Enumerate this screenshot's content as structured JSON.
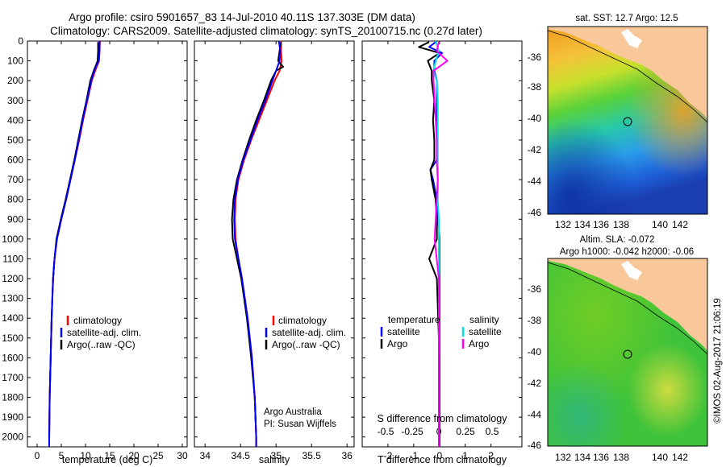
{
  "header": {
    "line1": "Argo profile: csiro 5901657_83 14-Jul-2010 40.11S 137.303E (DM data)",
    "line2": "Climatology: CARS2009. Satellite-adjusted climatology: synTS_20100715.nc (0.27d later)"
  },
  "map_top": {
    "title": "sat. SST: 12.7 Argo: 12.5",
    "lat_ticks": [
      "-36",
      "-38",
      "-40",
      "-42",
      "-44",
      "-46"
    ],
    "lon_ticks": [
      "132",
      "134",
      "136",
      "138",
      "140",
      "142"
    ]
  },
  "map_bottom": {
    "title_line1": "Altim. SLA: -0.072",
    "title_line2": "Argo h1000: -0.042 h2000: -0.06",
    "lat_ticks": [
      "-36",
      "-38",
      "-40",
      "-42",
      "-44",
      "-46"
    ],
    "lon_ticks": [
      "132",
      "134",
      "136",
      "138",
      "140",
      "142"
    ]
  },
  "side_credit": "©IMOS 02-Aug-2017 21:06:19",
  "annotations": {
    "argo_australia": "Argo Australia",
    "pi": "PI: Susan Wijffels"
  },
  "legend_ts": {
    "entries": [
      "climatology",
      "satellite-adj. clim.",
      "Argo(..raw -QC)"
    ]
  },
  "legend_diff": {
    "temp_header": "temperature",
    "sal_header": "salinity",
    "temp_entries": [
      "satellite",
      "Argo"
    ],
    "sal_entries": [
      "satellite",
      "Argo"
    ]
  },
  "colors": {
    "climatology": "#ff0000",
    "satellite": "#0000ff",
    "argo": "#000000",
    "sal_satellite": "#00e5e5",
    "sal_argo": "#ff00ff",
    "land": "#f8c89a"
  },
  "chart_data": [
    {
      "type": "line",
      "xlabel": "temperature (deg C)",
      "ylabel": "",
      "xlim": [
        -2,
        31
      ],
      "ylim": [
        2050,
        0
      ],
      "xticks": [
        0,
        5,
        10,
        15,
        20,
        25,
        30
      ],
      "yticks": [
        0,
        100,
        200,
        300,
        400,
        500,
        600,
        700,
        800,
        900,
        1000,
        1100,
        1200,
        1300,
        1400,
        1500,
        1600,
        1700,
        1800,
        1900,
        2000
      ],
      "series": [
        {
          "name": "climatology",
          "depth": [
            0,
            50,
            100,
            150,
            200,
            300,
            400,
            500,
            600,
            700,
            800,
            900,
            1000,
            1100,
            1200,
            1400,
            1600,
            1800,
            2000,
            2050
          ],
          "values": [
            13.0,
            12.9,
            12.8,
            12.0,
            11.3,
            10.4,
            9.5,
            8.7,
            7.8,
            6.9,
            6.0,
            5.0,
            4.1,
            3.6,
            3.3,
            3.0,
            2.8,
            2.6,
            2.5,
            2.5
          ]
        },
        {
          "name": "satellite-adj. clim.",
          "depth": [
            0,
            50,
            100,
            150,
            200,
            300,
            400,
            500,
            600,
            700,
            800,
            900,
            1000,
            1100,
            1200,
            1400,
            1600,
            1800,
            2000,
            2050
          ],
          "values": [
            12.9,
            12.9,
            12.7,
            11.8,
            11.2,
            10.3,
            9.4,
            8.6,
            7.8,
            6.9,
            6.0,
            5.0,
            4.1,
            3.6,
            3.3,
            3.0,
            2.8,
            2.6,
            2.5,
            2.5
          ]
        },
        {
          "name": "Argo(..raw -QC)",
          "depth": [
            5,
            50,
            100,
            150,
            200,
            300,
            400,
            500,
            600,
            700,
            800,
            900,
            1000,
            1100,
            1200,
            1400,
            1600,
            1800,
            2000,
            2050
          ],
          "values": [
            12.6,
            12.6,
            12.5,
            11.7,
            11.0,
            10.2,
            9.3,
            8.5,
            7.7,
            6.8,
            5.9,
            4.9,
            4.0,
            3.6,
            3.3,
            3.0,
            2.8,
            2.6,
            2.5,
            2.5
          ]
        }
      ]
    },
    {
      "type": "line",
      "xlabel": "salinity",
      "ylabel": "",
      "xlim": [
        33.85,
        36.1
      ],
      "ylim": [
        2050,
        0
      ],
      "xticks": [
        34,
        34.5,
        35,
        35.5,
        36
      ],
      "series": [
        {
          "name": "climatology",
          "depth": [
            0,
            50,
            100,
            150,
            200,
            300,
            400,
            500,
            600,
            700,
            800,
            900,
            1000,
            1100,
            1200,
            1400,
            1600,
            1800,
            2000,
            2050
          ],
          "values": [
            35.07,
            35.07,
            35.08,
            35.05,
            34.98,
            34.87,
            34.76,
            34.65,
            34.55,
            34.47,
            34.43,
            34.42,
            34.43,
            34.47,
            34.52,
            34.6,
            34.66,
            34.7,
            34.72,
            34.72
          ]
        },
        {
          "name": "satellite-adj. clim.",
          "depth": [
            0,
            50,
            100,
            150,
            200,
            300,
            400,
            500,
            600,
            700,
            800,
            900,
            1000,
            1100,
            1200,
            1400,
            1600,
            1800,
            2000,
            2050
          ],
          "values": [
            35.04,
            35.06,
            35.05,
            35.0,
            34.95,
            34.85,
            34.74,
            34.64,
            34.54,
            34.46,
            34.42,
            34.41,
            34.42,
            34.47,
            34.52,
            34.6,
            34.66,
            34.7,
            34.72,
            34.72
          ]
        },
        {
          "name": "Argo(..raw -QC)",
          "depth": [
            5,
            50,
            100,
            130,
            150,
            200,
            300,
            400,
            500,
            600,
            700,
            800,
            900,
            1000,
            1100,
            1200,
            1400,
            1600,
            1800,
            2000,
            2050
          ],
          "values": [
            35.07,
            35.05,
            35.03,
            35.1,
            35.0,
            34.93,
            34.83,
            34.72,
            34.62,
            34.53,
            34.45,
            34.4,
            34.38,
            34.39,
            34.45,
            34.51,
            34.59,
            34.65,
            34.7,
            34.72,
            34.72
          ]
        }
      ]
    },
    {
      "type": "line",
      "xlabel": "T difference from climatology",
      "x2label": "S difference from climatology",
      "ylabel": "",
      "xlim": [
        -3,
        3.2
      ],
      "ylim": [
        2050,
        0
      ],
      "xticks": [
        -2,
        -1,
        0,
        1,
        2
      ],
      "x2ticks": [
        -0.5,
        -0.25,
        0,
        0.25,
        0.5
      ],
      "x2ticklabels": [
        "-0.5",
        "-0.25",
        "0",
        "0.25",
        "0.5"
      ],
      "series": [
        {
          "name": "temperature satellite",
          "depth": [
            0,
            30,
            60,
            100,
            150,
            200,
            300,
            400,
            500,
            600,
            650,
            700,
            800,
            900,
            1000,
            1200,
            1400,
            1600,
            1800,
            2000,
            2050
          ],
          "values": [
            -0.1,
            -0.4,
            0.1,
            -0.2,
            -0.2,
            -0.1,
            -0.1,
            -0.1,
            -0.1,
            -0.1,
            -0.35,
            -0.25,
            -0.1,
            -0.05,
            0.0,
            0.0,
            0.0,
            0.0,
            0.0,
            0.0,
            0.0
          ]
        },
        {
          "name": "temperature Argo",
          "depth": [
            5,
            30,
            60,
            100,
            150,
            200,
            300,
            400,
            500,
            600,
            650,
            700,
            800,
            900,
            1000,
            1100,
            1200,
            1400,
            1600,
            1800,
            2000,
            2050
          ],
          "values": [
            -0.4,
            -0.8,
            0.0,
            -0.45,
            -0.3,
            -0.3,
            -0.2,
            -0.25,
            -0.2,
            -0.2,
            -0.35,
            -0.3,
            -0.15,
            -0.1,
            -0.1,
            -0.4,
            -0.1,
            -0.05,
            0.0,
            0.0,
            0.0,
            0.0
          ]
        },
        {
          "name": "salinity satellite",
          "depth": [
            0,
            50,
            100,
            150,
            200,
            300,
            400,
            500,
            600,
            700,
            800,
            900,
            1000,
            1200,
            1400,
            1600,
            1800,
            2000,
            2050
          ],
          "values": [
            -0.03,
            0.0,
            -0.03,
            -0.05,
            -0.02,
            -0.01,
            -0.01,
            -0.01,
            -0.01,
            -0.01,
            -0.01,
            0.0,
            0.0,
            0.0,
            0.0,
            0.0,
            0.0,
            0.0,
            0.0
          ]
        },
        {
          "name": "salinity Argo",
          "depth": [
            5,
            50,
            100,
            150,
            200,
            300,
            400,
            500,
            600,
            700,
            800,
            900,
            1000,
            1100,
            1200,
            1400,
            1600,
            1800,
            2000,
            2050
          ],
          "values": [
            0.0,
            -0.02,
            0.08,
            -0.05,
            -0.05,
            -0.04,
            -0.03,
            -0.02,
            -0.02,
            -0.01,
            -0.02,
            -0.03,
            -0.04,
            -0.02,
            0.0,
            0.0,
            0.0,
            0.0,
            0.0,
            0.0
          ]
        }
      ]
    }
  ]
}
